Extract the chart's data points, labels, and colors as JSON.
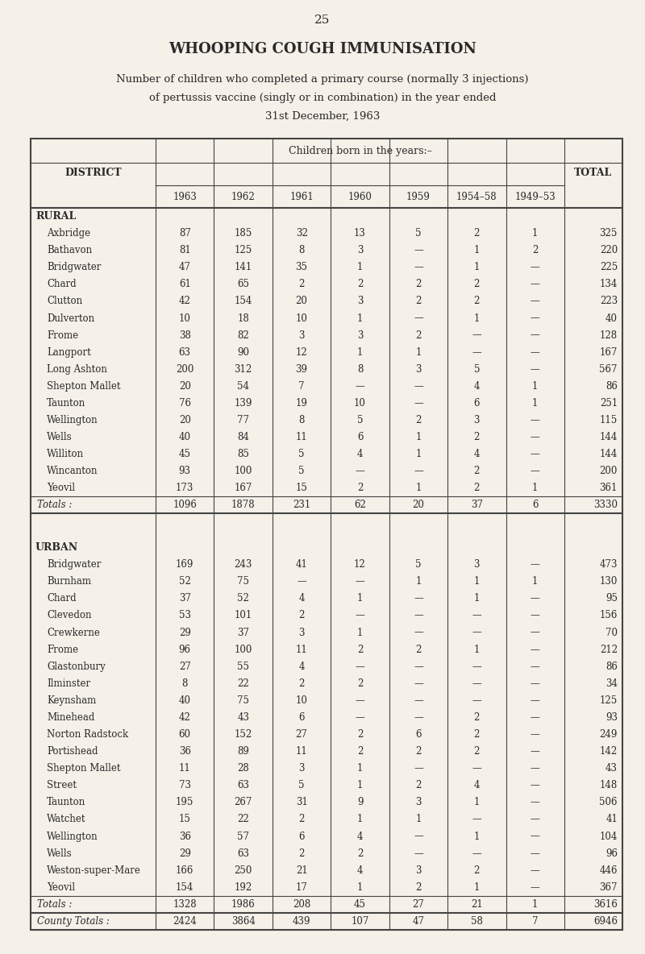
{
  "page_number": "25",
  "title": "WHOOPING COUGH IMMUNISATION",
  "subtitle1": "Number of children who completed a primary course (normally 3 injections)",
  "subtitle2": "of pertussis vaccine (singly or in combination) in the year ended",
  "subtitle3": "31st December, 1963",
  "col_header_main": "Children born in the years:–",
  "col_header_district": "DISTRICT",
  "col_header_total": "TOTAL",
  "col_years": [
    "1963",
    "1962",
    "1961",
    "1960",
    "1959",
    "1954–58",
    "1949–53"
  ],
  "rural_label": "RURAL",
  "rural_districts": [
    "Axbridge",
    "Bathavon",
    "Bridgwater",
    "Chard",
    "Clutton",
    "Dulverton",
    "Frome",
    "Langport",
    "Long Ashton",
    "Shepton Mallet",
    "Taunton",
    "Wellington",
    "Wells",
    "Williton",
    "Wincanton",
    "Yeovil"
  ],
  "rural_data": [
    [
      87,
      185,
      32,
      13,
      5,
      2,
      1,
      325
    ],
    [
      81,
      125,
      8,
      3,
      "—",
      1,
      2,
      220
    ],
    [
      47,
      141,
      35,
      1,
      "—",
      1,
      "—",
      225
    ],
    [
      61,
      65,
      2,
      2,
      2,
      2,
      "—",
      134
    ],
    [
      42,
      154,
      20,
      3,
      2,
      2,
      "—",
      223
    ],
    [
      10,
      18,
      10,
      1,
      "—",
      1,
      "—",
      40
    ],
    [
      38,
      82,
      3,
      3,
      2,
      "—",
      "—",
      128
    ],
    [
      63,
      90,
      12,
      1,
      1,
      "—",
      "—",
      167
    ],
    [
      200,
      312,
      39,
      8,
      3,
      5,
      "—",
      567
    ],
    [
      20,
      54,
      7,
      "—",
      "—",
      4,
      1,
      86
    ],
    [
      76,
      139,
      19,
      10,
      "—",
      6,
      1,
      251
    ],
    [
      20,
      77,
      8,
      5,
      2,
      3,
      "—",
      115
    ],
    [
      40,
      84,
      11,
      6,
      1,
      2,
      "—",
      144
    ],
    [
      45,
      85,
      5,
      4,
      1,
      4,
      "—",
      144
    ],
    [
      93,
      100,
      5,
      "—",
      "—",
      2,
      "—",
      200
    ],
    [
      173,
      167,
      15,
      2,
      1,
      2,
      1,
      361
    ]
  ],
  "rural_totals": [
    1096,
    1878,
    231,
    62,
    20,
    37,
    6,
    3330
  ],
  "urban_label": "URBAN",
  "urban_districts": [
    "Bridgwater",
    "Burnham",
    "Chard",
    "Clevedon",
    "Crewkerne",
    "Frome",
    "Glastonbury",
    "Ilminster",
    "Keynsham",
    "Minehead",
    "Norton Radstock",
    "Portishead",
    "Shepton Mallet",
    "Street",
    "Taunton",
    "Watchet",
    "Wellington",
    "Wells",
    "Weston-super-Mare",
    "Yeovil"
  ],
  "urban_data": [
    [
      169,
      243,
      41,
      12,
      5,
      3,
      "—",
      473
    ],
    [
      52,
      75,
      "—",
      "—",
      1,
      1,
      1,
      130
    ],
    [
      37,
      52,
      4,
      1,
      "—",
      1,
      "—",
      95
    ],
    [
      53,
      101,
      2,
      "—",
      "—",
      "—",
      "—",
      156
    ],
    [
      29,
      37,
      3,
      1,
      "—",
      "—",
      "—",
      70
    ],
    [
      96,
      100,
      11,
      2,
      2,
      1,
      "—",
      212
    ],
    [
      27,
      55,
      4,
      "—",
      "—",
      "—",
      "—",
      86
    ],
    [
      8,
      22,
      2,
      2,
      "—",
      "—",
      "—",
      34
    ],
    [
      40,
      75,
      10,
      "—",
      "—",
      "—",
      "—",
      125
    ],
    [
      42,
      43,
      6,
      "—",
      "—",
      2,
      "—",
      93
    ],
    [
      60,
      152,
      27,
      2,
      6,
      2,
      "—",
      249
    ],
    [
      36,
      89,
      11,
      2,
      2,
      2,
      "—",
      142
    ],
    [
      11,
      28,
      3,
      1,
      "—",
      "—",
      "—",
      43
    ],
    [
      73,
      63,
      5,
      1,
      2,
      4,
      "—",
      148
    ],
    [
      195,
      267,
      31,
      9,
      3,
      1,
      "—",
      506
    ],
    [
      15,
      22,
      2,
      1,
      1,
      "—",
      "—",
      41
    ],
    [
      36,
      57,
      6,
      4,
      "—",
      1,
      "—",
      104
    ],
    [
      29,
      63,
      2,
      2,
      "—",
      "—",
      "—",
      96
    ],
    [
      166,
      250,
      21,
      4,
      3,
      2,
      "—",
      446
    ],
    [
      154,
      192,
      17,
      1,
      2,
      1,
      "—",
      367
    ]
  ],
  "urban_totals": [
    1328,
    1986,
    208,
    45,
    27,
    21,
    1,
    3616
  ],
  "county_totals": [
    2424,
    3864,
    439,
    107,
    47,
    58,
    7,
    6946
  ],
  "bg_color": "#f5f0e8",
  "text_color": "#2a2a2a",
  "table_border_color": "#444444",
  "fig_width": 8.0,
  "fig_height": 11.84,
  "dpi": 100
}
